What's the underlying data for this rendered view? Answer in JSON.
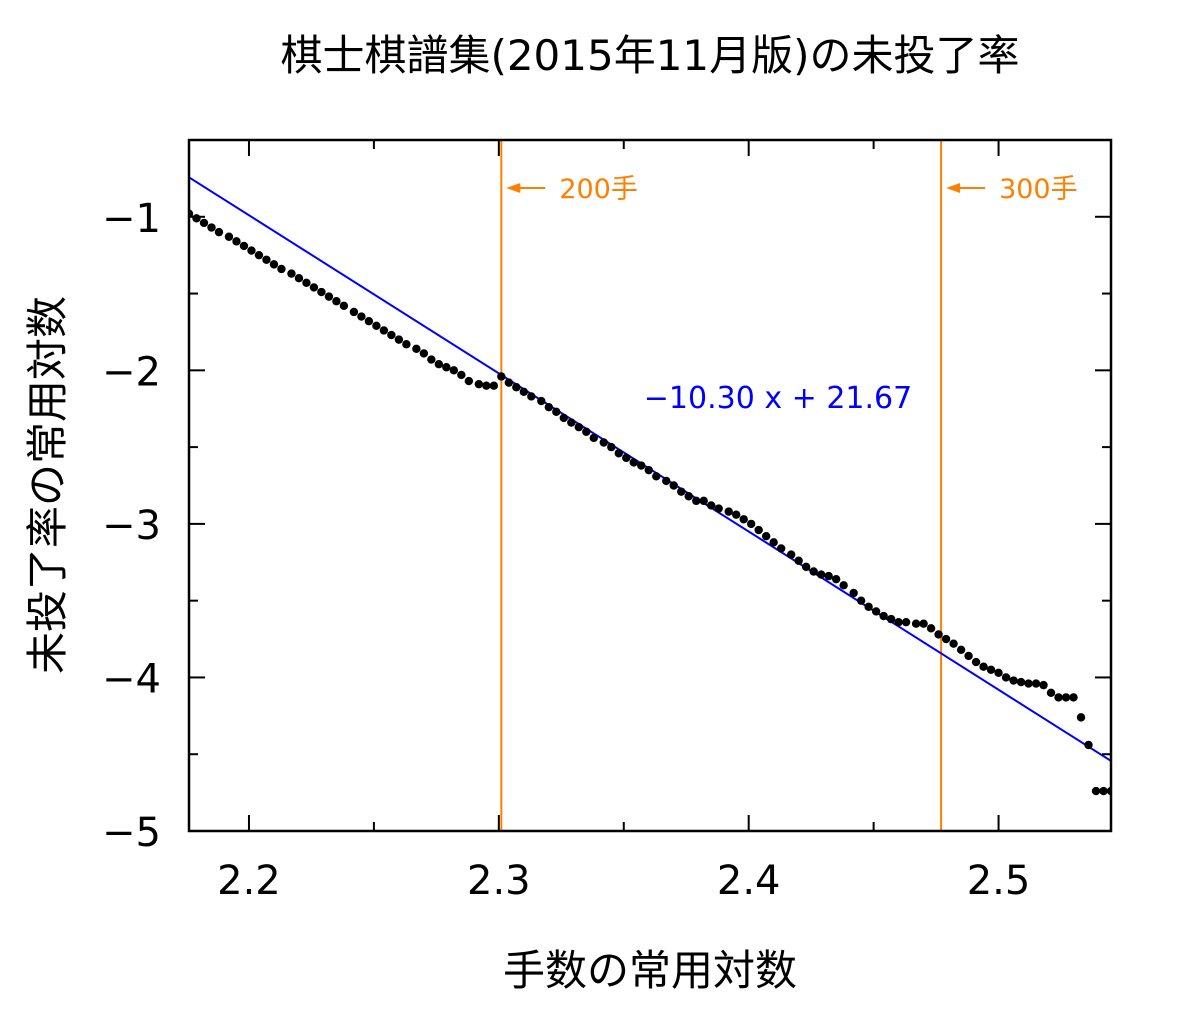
{
  "chart_data": {
    "type": "scatter",
    "title": "棋士棋譜集(2015年11月版)の未投了率",
    "xlabel": "手数の常用対数",
    "ylabel": "未投了率の常用対数",
    "xlim": [
      2.176,
      2.545
    ],
    "ylim": [
      -5,
      -0.5
    ],
    "xticks": [
      2.2,
      2.3,
      2.4,
      2.5
    ],
    "xtick_labels": [
      "2.2",
      "2.3",
      "2.4",
      "2.5"
    ],
    "yticks": [
      -1,
      -2,
      -3,
      -4,
      -5
    ],
    "ytick_labels": [
      "−1",
      "−2",
      "−3",
      "−4",
      "−5"
    ],
    "grid": false,
    "fit_line": {
      "slope": -10.3,
      "intercept": 21.67,
      "label": "−10.30 x + 21.67",
      "color": "#0000ff"
    },
    "vlines": [
      {
        "x": 2.301,
        "label": "200手",
        "color": "#ff8000"
      },
      {
        "x": 2.477,
        "label": "300手",
        "color": "#ff8000"
      }
    ],
    "point_color": "#000000",
    "series": [
      {
        "x": [
          2.176,
          2.179,
          2.182,
          2.185,
          2.188,
          2.192,
          2.195,
          2.198,
          2.201,
          2.204,
          2.207,
          2.21,
          2.213,
          2.217,
          2.22,
          2.223,
          2.226,
          2.229,
          2.232,
          2.235,
          2.238,
          2.242,
          2.245,
          2.248,
          2.251,
          2.254,
          2.257,
          2.26,
          2.263,
          2.267,
          2.27,
          2.273,
          2.276,
          2.279,
          2.282,
          2.285,
          2.288,
          2.292,
          2.295,
          2.298,
          2.301,
          2.304,
          2.307,
          2.31,
          2.313,
          2.317,
          2.32,
          2.323,
          2.326,
          2.329,
          2.332,
          2.335,
          2.338,
          2.342,
          2.345,
          2.348,
          2.351,
          2.354,
          2.357,
          2.36,
          2.363,
          2.367,
          2.37,
          2.373,
          2.376,
          2.379,
          2.382,
          2.385,
          2.388,
          2.392,
          2.395,
          2.398,
          2.401,
          2.404,
          2.407,
          2.41,
          2.413,
          2.417,
          2.42,
          2.423,
          2.426,
          2.429,
          2.432,
          2.435,
          2.438,
          2.442,
          2.445,
          2.448,
          2.451,
          2.454,
          2.457,
          2.46,
          2.463,
          2.467,
          2.47,
          2.473,
          2.476,
          2.479,
          2.482,
          2.485,
          2.488,
          2.491,
          2.494,
          2.497,
          2.5,
          2.503,
          2.506,
          2.509,
          2.512,
          2.515,
          2.518,
          2.521,
          2.524,
          2.527,
          2.53,
          2.533,
          2.536,
          2.539,
          2.542,
          2.545
        ],
        "y": [
          -0.98,
          -1.01,
          -1.04,
          -1.07,
          -1.1,
          -1.13,
          -1.16,
          -1.19,
          -1.22,
          -1.25,
          -1.28,
          -1.31,
          -1.34,
          -1.37,
          -1.4,
          -1.43,
          -1.46,
          -1.49,
          -1.52,
          -1.55,
          -1.58,
          -1.62,
          -1.65,
          -1.68,
          -1.71,
          -1.74,
          -1.77,
          -1.8,
          -1.83,
          -1.86,
          -1.89,
          -1.93,
          -1.96,
          -1.98,
          -2.0,
          -2.03,
          -2.07,
          -2.09,
          -2.1,
          -2.1,
          -2.04,
          -2.08,
          -2.11,
          -2.14,
          -2.17,
          -2.2,
          -2.24,
          -2.27,
          -2.31,
          -2.34,
          -2.37,
          -2.4,
          -2.44,
          -2.47,
          -2.5,
          -2.54,
          -2.57,
          -2.6,
          -2.62,
          -2.65,
          -2.69,
          -2.72,
          -2.75,
          -2.79,
          -2.82,
          -2.85,
          -2.85,
          -2.88,
          -2.9,
          -2.92,
          -2.94,
          -2.97,
          -3.0,
          -3.04,
          -3.08,
          -3.12,
          -3.16,
          -3.2,
          -3.24,
          -3.28,
          -3.31,
          -3.33,
          -3.34,
          -3.36,
          -3.4,
          -3.45,
          -3.5,
          -3.54,
          -3.57,
          -3.6,
          -3.62,
          -3.64,
          -3.64,
          -3.65,
          -3.65,
          -3.68,
          -3.72,
          -3.75,
          -3.78,
          -3.82,
          -3.86,
          -3.9,
          -3.93,
          -3.95,
          -3.97,
          -4.0,
          -4.02,
          -4.03,
          -4.04,
          -4.04,
          -4.05,
          -4.1,
          -4.13,
          -4.13,
          -4.13,
          -4.26,
          -4.44,
          -4.74,
          -4.74,
          -4.74
        ]
      }
    ]
  }
}
